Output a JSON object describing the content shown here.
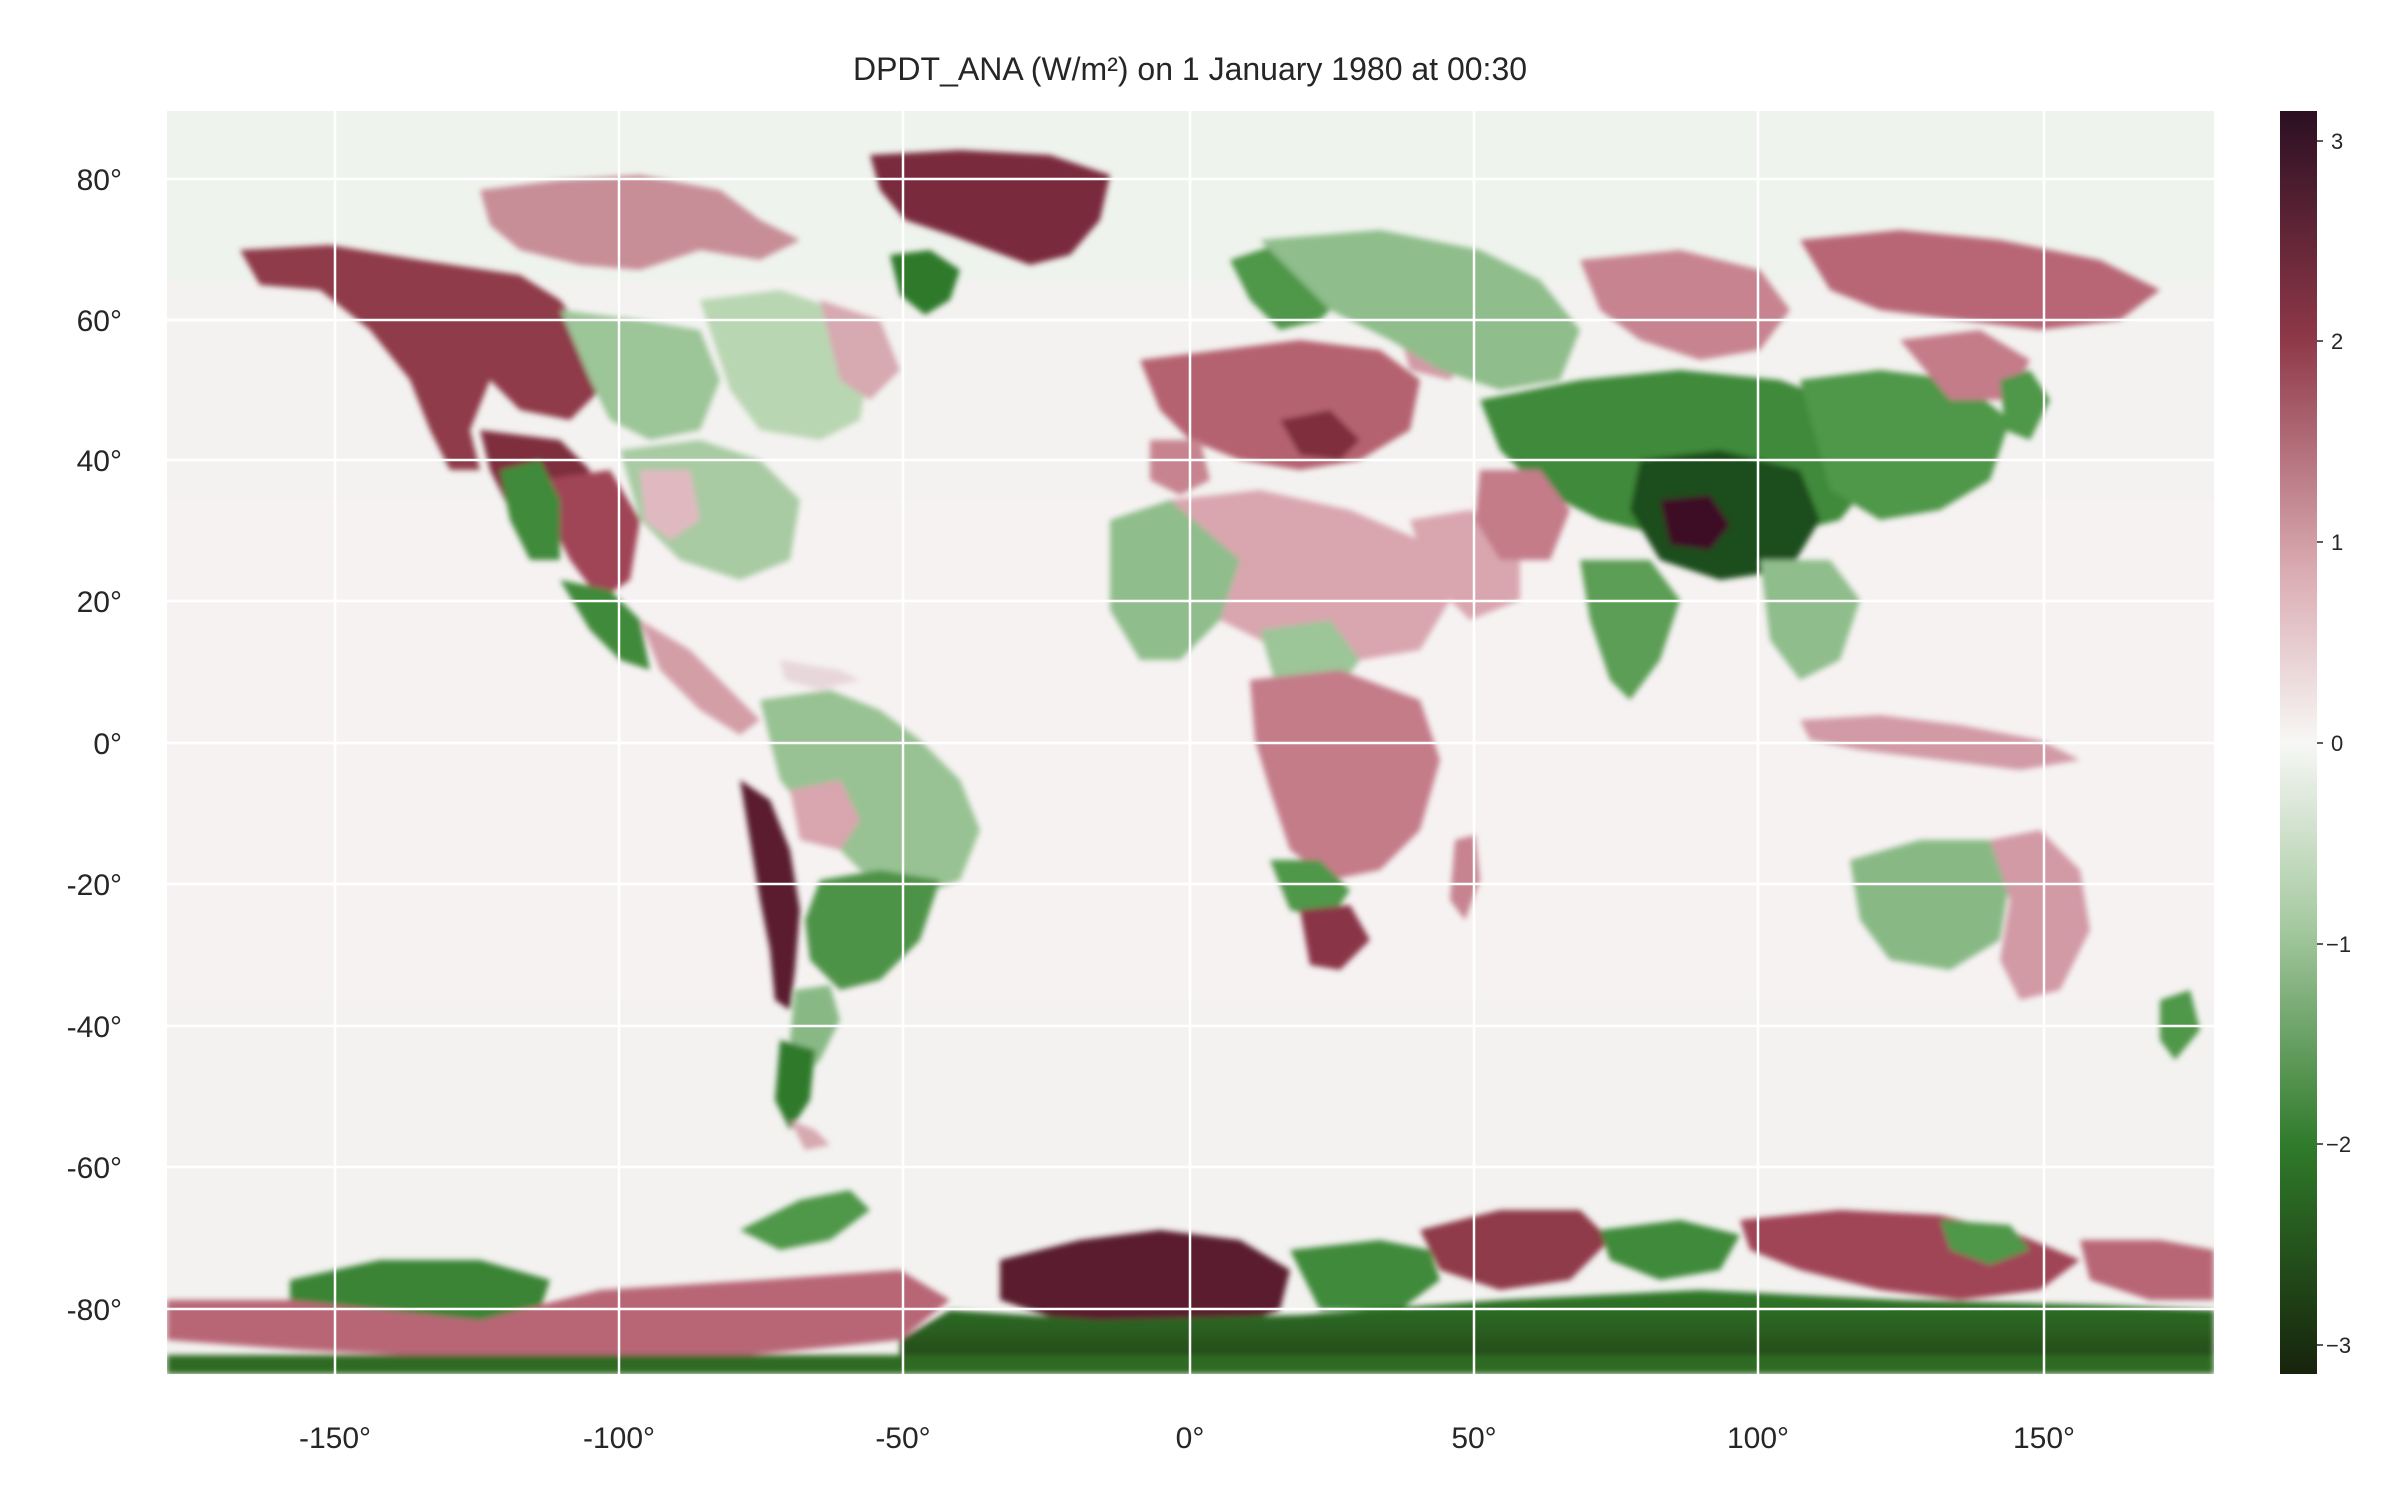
{
  "title": "DPDT_ANA (W/m²) on 1 January 1980 at 00:30",
  "map": {
    "projection": "equirectangular",
    "lon_range": [
      -180,
      180
    ],
    "lat_range": [
      -90,
      90
    ],
    "grid": true,
    "lon_ticks": [
      "-150°",
      "-100°",
      "-50°",
      "0°",
      "50°",
      "100°",
      "150°"
    ],
    "lat_ticks": [
      "80°",
      "60°",
      "40°",
      "20°",
      "0°",
      "-20°",
      "-40°",
      "-60°",
      "-80°"
    ],
    "lon_tick_values": [
      -150,
      -100,
      -50,
      0,
      50,
      100,
      150
    ],
    "lat_tick_values": [
      80,
      60,
      40,
      20,
      0,
      -20,
      -40,
      -60,
      -80
    ]
  },
  "colorbar": {
    "colormap": "diverging green-white-maroon",
    "range": [
      -3.15,
      3.15
    ],
    "tick_labels": [
      "3",
      "2",
      "1",
      "0",
      "−1",
      "−2",
      "−3"
    ],
    "tick_values": [
      3,
      2,
      1,
      0,
      -1,
      -2,
      -3
    ],
    "colors": {
      "low": "#1a2a10",
      "mid_low": "#2f7a2a",
      "zero": "#f7f7f5",
      "mid_high": "#a84a55",
      "high": "#2b0f22"
    }
  },
  "regions": [
    {
      "id": "canada-pacific-coast",
      "sign": "positive",
      "value": 2.2
    },
    {
      "id": "us-rockies",
      "sign": "positive",
      "value": 1.8
    },
    {
      "id": "us-southwest",
      "sign": "positive",
      "value": 1.6
    },
    {
      "id": "mexico-sierra",
      "sign": "negative",
      "value": -1.4
    },
    {
      "id": "canadian-prairies",
      "sign": "negative",
      "value": -0.8
    },
    {
      "id": "hudson-bay-region",
      "sign": "negative",
      "value": -0.9
    },
    {
      "id": "eastern-us",
      "sign": "negative",
      "value": -0.7
    },
    {
      "id": "greenland-east",
      "sign": "positive",
      "value": 2.4
    },
    {
      "id": "greenland-south",
      "sign": "negative",
      "value": -1.6
    },
    {
      "id": "andes",
      "sign": "positive",
      "value": 2.6
    },
    {
      "id": "amazon",
      "sign": "negative",
      "value": -0.7
    },
    {
      "id": "patagonia",
      "sign": "negative",
      "value": -1.8
    },
    {
      "id": "europe",
      "sign": "positive",
      "value": 1.1
    },
    {
      "id": "sahara",
      "sign": "positive",
      "value": 0.8
    },
    {
      "id": "west-africa",
      "sign": "negative",
      "value": -0.8
    },
    {
      "id": "southern-africa",
      "sign": "positive",
      "value": 1.3
    },
    {
      "id": "south-africa-tip",
      "sign": "positive",
      "value": 2.0
    },
    {
      "id": "siberia-west",
      "sign": "negative",
      "value": -1.0
    },
    {
      "id": "central-asia",
      "sign": "negative",
      "value": -1.8
    },
    {
      "id": "tibet",
      "sign": "positive",
      "value": 2.8
    },
    {
      "id": "tibet-surround",
      "sign": "negative",
      "value": -2.2
    },
    {
      "id": "east-siberia",
      "sign": "positive",
      "value": 1.2
    },
    {
      "id": "india",
      "sign": "negative",
      "value": -1.2
    },
    {
      "id": "australia-west",
      "sign": "negative",
      "value": -1.0
    },
    {
      "id": "australia-east",
      "sign": "positive",
      "value": 1.0
    },
    {
      "id": "antarctica-east",
      "sign": "positive",
      "value": 2.5
    },
    {
      "id": "antarctica-interior",
      "sign": "negative",
      "value": -2.4
    },
    {
      "id": "antarctica-west",
      "sign": "positive",
      "value": 1.5
    },
    {
      "id": "ross-ice-shelf",
      "sign": "negative",
      "value": -1.7
    }
  ]
}
